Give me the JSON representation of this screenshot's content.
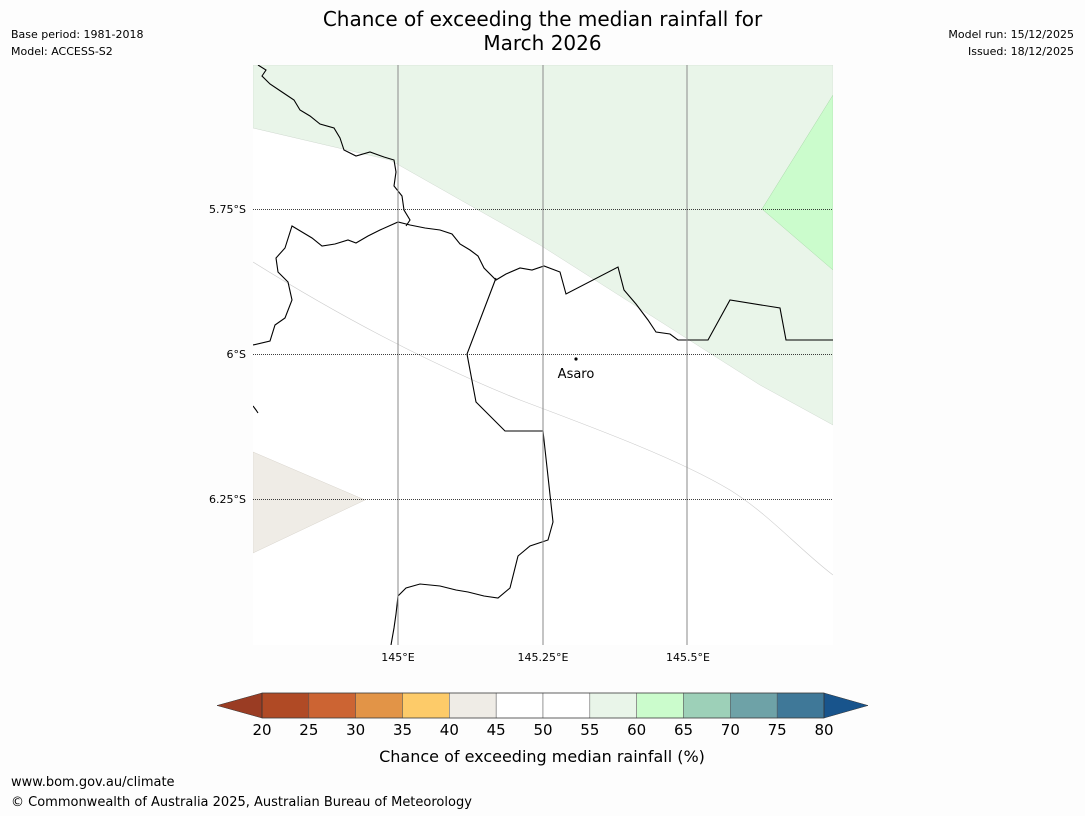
{
  "header": {
    "title_line1": "Chance of exceeding the median rainfall for",
    "title_line2": "March 2026",
    "base_period": "Base period: 1981-2018",
    "model": "Model: ACCESS-S2",
    "model_run": "Model run: 15/12/2025",
    "issued": "Issued: 18/12/2025"
  },
  "map": {
    "lat_labels": [
      "5.75°S",
      "6°S",
      "6.25°S"
    ],
    "lon_labels": [
      "145°E",
      "145.25°E",
      "145.5°E"
    ],
    "place_name": "Asaro"
  },
  "colorbar": {
    "ticks": [
      "20",
      "25",
      "30",
      "35",
      "40",
      "45",
      "50",
      "55",
      "60",
      "65",
      "70",
      "75",
      "80"
    ],
    "label": "Chance of exceeding median rainfall (%)",
    "colors": [
      "#b04a25",
      "#cc6433",
      "#e29447",
      "#fdcb69",
      "#efece6",
      "#ffffff",
      "#ffffff",
      "#e9f5e9",
      "#cbfccc",
      "#9dd0b8",
      "#6ea2a7",
      "#3f7898"
    ],
    "under_color": "#9a3c23",
    "over_color": "#18548c"
  },
  "footer": {
    "url": "www.bom.gov.au/climate",
    "copyright": "© Commonwealth of Australia 2025, Australian Bureau of Meteorology"
  }
}
